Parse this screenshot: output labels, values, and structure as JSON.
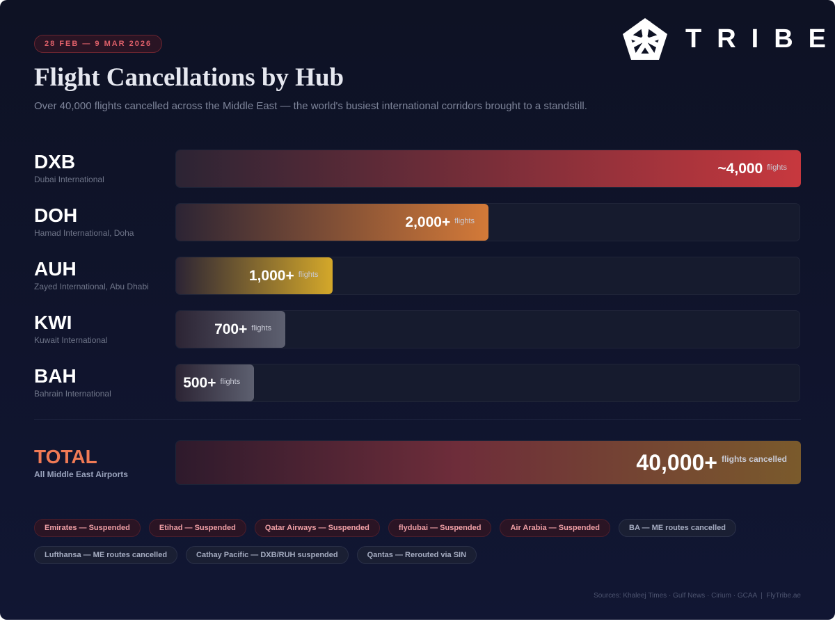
{
  "header": {
    "date_range": "28 FEB — 9 MAR 2026",
    "title": "Flight Cancellations by Hub",
    "subtitle": "Over 40,000 flights cancelled across the Middle East — the world's busiest international corridors brought to a standstill.",
    "brand": "TRIBE"
  },
  "chart_data": {
    "type": "bar",
    "orientation": "horizontal",
    "categories": [
      "DXB",
      "DOH",
      "AUH",
      "KWI",
      "BAH"
    ],
    "category_subtitles": [
      "Dubai International",
      "Hamad International, Doha",
      "Zayed International, Abu Dhabi",
      "Kuwait International",
      "Bahrain International"
    ],
    "values": [
      4000,
      2000,
      1000,
      700,
      500
    ],
    "value_labels": [
      "~4,000",
      "2,000+",
      "1,000+",
      "700+",
      "500+"
    ],
    "unit_label": "flights",
    "colors": [
      "#c7383e",
      "#d47a38",
      "#d4a82a",
      "#5d6070",
      "#5d6070"
    ],
    "xlim": [
      0,
      4000
    ]
  },
  "total": {
    "label": "TOTAL",
    "sublabel": "All Middle East Airports",
    "value": 40000,
    "value_label": "40,000+",
    "unit_label": "flights cancelled",
    "xlim": [
      0,
      40000
    ]
  },
  "status_tags": [
    {
      "text": "Emirates — Suspended",
      "kind": "suspended"
    },
    {
      "text": "Etihad — Suspended",
      "kind": "suspended"
    },
    {
      "text": "Qatar Airways — Suspended",
      "kind": "suspended"
    },
    {
      "text": "flydubai — Suspended",
      "kind": "suspended"
    },
    {
      "text": "Air Arabia — Suspended",
      "kind": "suspended"
    },
    {
      "text": "BA — ME routes cancelled",
      "kind": "other"
    },
    {
      "text": "Lufthansa — ME routes cancelled",
      "kind": "other"
    },
    {
      "text": "Cathay Pacific — DXB/RUH suspended",
      "kind": "other"
    },
    {
      "text": "Qantas — Rerouted via SIN",
      "kind": "other"
    }
  ],
  "sources": "Sources: Khaleej Times · Gulf News · Cirium · GCAA  |  FlyTribe.ae"
}
